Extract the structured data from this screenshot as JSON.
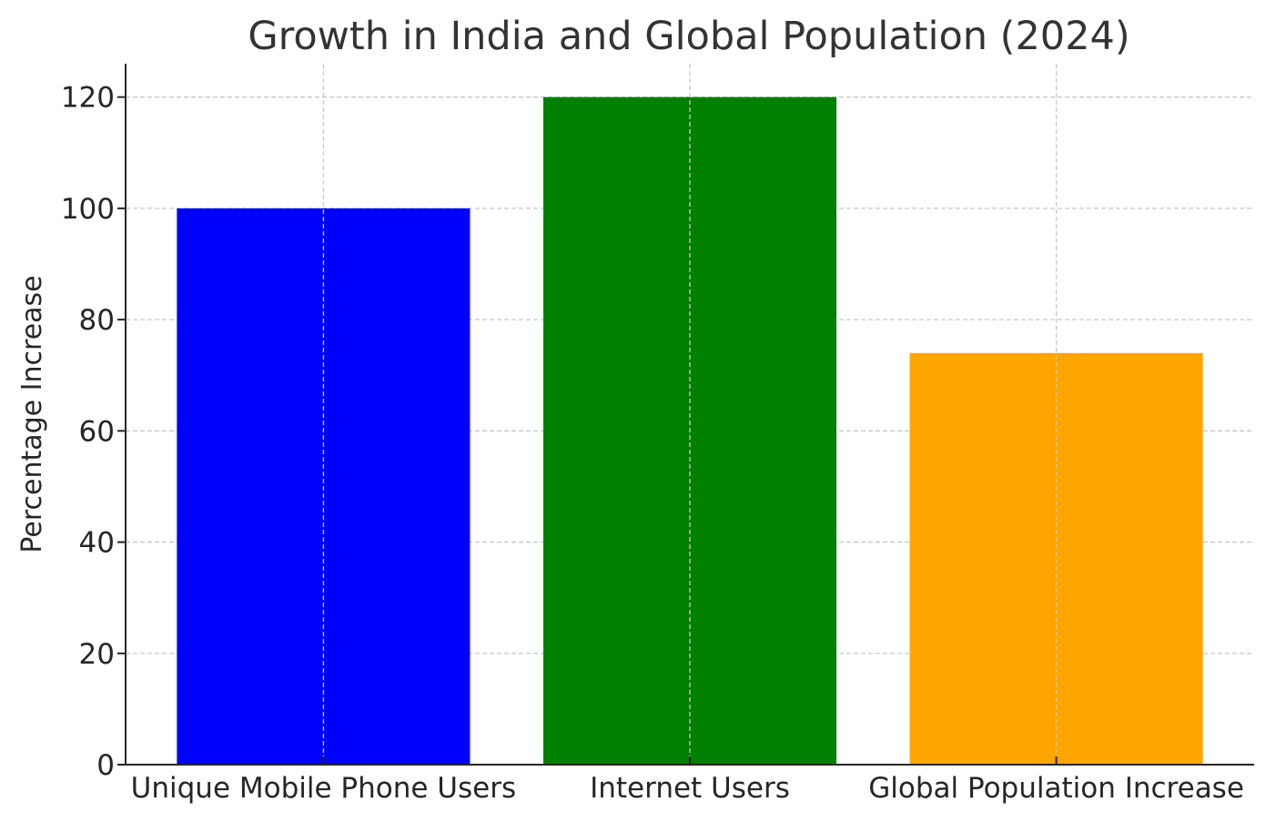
{
  "chart_data": {
    "type": "bar",
    "title": "Growth in India and Global Population (2024)",
    "xlabel": "",
    "ylabel": "Percentage Increase",
    "categories": [
      "Unique Mobile Phone Users",
      "Internet Users",
      "Global Population Increase"
    ],
    "values": [
      100,
      120,
      74
    ],
    "colors": [
      "#0000ff",
      "#008000",
      "#ffa500"
    ],
    "ylim": [
      0,
      126
    ],
    "yticks": [
      0,
      20,
      40,
      60,
      80,
      100,
      120
    ],
    "grid": true,
    "legend": "none"
  }
}
